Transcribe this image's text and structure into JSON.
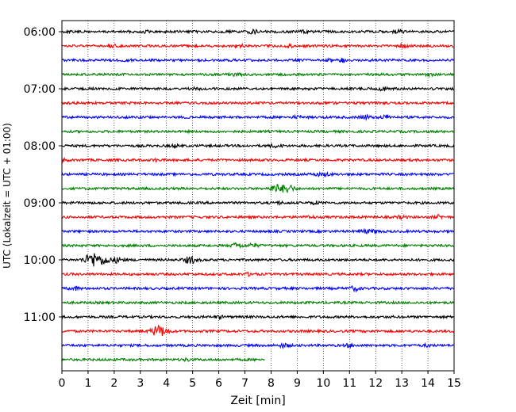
{
  "chart_data": {
    "type": "line",
    "title": "",
    "xlabel": "Zeit  [min]",
    "ylabel": "UTC (Lokalzeit = UTC + 01:00)",
    "xlim": [
      0,
      15
    ],
    "x_ticks": [
      "0",
      "1",
      "2",
      "3",
      "4",
      "5",
      "6",
      "7",
      "8",
      "9",
      "10",
      "11",
      "12",
      "13",
      "14",
      "15"
    ],
    "y_ticks": [
      "06:00",
      "07:00",
      "08:00",
      "09:00",
      "10:00",
      "11:00"
    ],
    "grid": "vertical dotted",
    "legend": "none",
    "trace_minutes": 15,
    "color_cycle": [
      "#000000",
      "#ff0000",
      "#0000ff",
      "#008000"
    ],
    "series": [
      {
        "start": "06:00",
        "end_min": 15,
        "bursts": [
          [
            3.2,
            1.0
          ],
          [
            7.3,
            1.3
          ],
          [
            9.2,
            1.1
          ],
          [
            12.9,
            1.2
          ]
        ]
      },
      {
        "start": "06:15",
        "end_min": 15,
        "bursts": [
          [
            1.9,
            1.0
          ],
          [
            6.8,
            1.1
          ],
          [
            8.7,
            1.0
          ],
          [
            13.0,
            1.3
          ]
        ]
      },
      {
        "start": "06:30",
        "end_min": 15,
        "bursts": [
          [
            2.5,
            0.9
          ],
          [
            10.3,
            1.1
          ],
          [
            10.7,
            1.2
          ]
        ]
      },
      {
        "start": "06:45",
        "end_min": 15,
        "bursts": [
          [
            6.7,
            1.0
          ],
          [
            14.1,
            1.1
          ]
        ]
      },
      {
        "start": "07:00",
        "end_min": 15,
        "bursts": [
          [
            5.1,
            0.9
          ],
          [
            12.3,
            1.2
          ]
        ]
      },
      {
        "start": "07:15",
        "end_min": 15,
        "bursts": []
      },
      {
        "start": "07:30",
        "end_min": 15,
        "bursts": [
          [
            9.0,
            1.0
          ],
          [
            11.6,
            1.4
          ],
          [
            12.4,
            1.3
          ]
        ]
      },
      {
        "start": "07:45",
        "end_min": 15,
        "bursts": []
      },
      {
        "start": "08:00",
        "end_min": 15,
        "bursts": [
          [
            4.3,
            1.0
          ],
          [
            8.1,
            1.1
          ],
          [
            8.3,
            1.1
          ]
        ]
      },
      {
        "start": "08:15",
        "end_min": 15,
        "bursts": [
          [
            0.1,
            1.0
          ],
          [
            3.6,
            0.9
          ]
        ]
      },
      {
        "start": "08:30",
        "end_min": 15,
        "bursts": [
          [
            9.8,
            1.1
          ],
          [
            10.1,
            1.1
          ]
        ]
      },
      {
        "start": "08:45",
        "end_min": 15,
        "bursts": [
          [
            8.2,
            2.2
          ],
          [
            8.6,
            2.5
          ]
        ]
      },
      {
        "start": "09:00",
        "end_min": 15,
        "bursts": [
          [
            8.3,
            1.0
          ],
          [
            9.7,
            1.1
          ]
        ]
      },
      {
        "start": "09:15",
        "end_min": 15,
        "bursts": [
          [
            9.5,
            1.0
          ],
          [
            13.0,
            1.0
          ],
          [
            14.4,
            1.2
          ]
        ]
      },
      {
        "start": "09:30",
        "end_min": 15,
        "bursts": [
          [
            11.6,
            1.3
          ],
          [
            12.0,
            1.2
          ]
        ]
      },
      {
        "start": "09:45",
        "end_min": 15,
        "bursts": [
          [
            6.7,
            1.6
          ],
          [
            7.3,
            1.3
          ]
        ]
      },
      {
        "start": "10:00",
        "end_min": 15,
        "bursts": [
          [
            1.2,
            3.8
          ],
          [
            1.6,
            2.6
          ],
          [
            2.1,
            1.6
          ],
          [
            4.9,
            2.0
          ]
        ]
      },
      {
        "start": "10:15",
        "end_min": 15,
        "bursts": [
          [
            7.2,
            1.1
          ]
        ]
      },
      {
        "start": "10:30",
        "end_min": 15,
        "bursts": [
          [
            0.5,
            1.2
          ],
          [
            11.2,
            1.4
          ]
        ]
      },
      {
        "start": "10:45",
        "end_min": 15,
        "bursts": []
      },
      {
        "start": "11:00",
        "end_min": 15,
        "bursts": [
          [
            6.0,
            1.0
          ]
        ]
      },
      {
        "start": "11:15",
        "end_min": 15,
        "bursts": [
          [
            3.7,
            3.0
          ],
          [
            3.9,
            2.0
          ]
        ]
      },
      {
        "start": "11:30",
        "end_min": 15,
        "bursts": [
          [
            8.5,
            1.3
          ],
          [
            11.0,
            1.1
          ],
          [
            14.0,
            1.0
          ]
        ]
      },
      {
        "start": "11:45",
        "end_min": 7.75,
        "bursts": [
          [
            4.8,
            1.0
          ]
        ]
      }
    ]
  }
}
